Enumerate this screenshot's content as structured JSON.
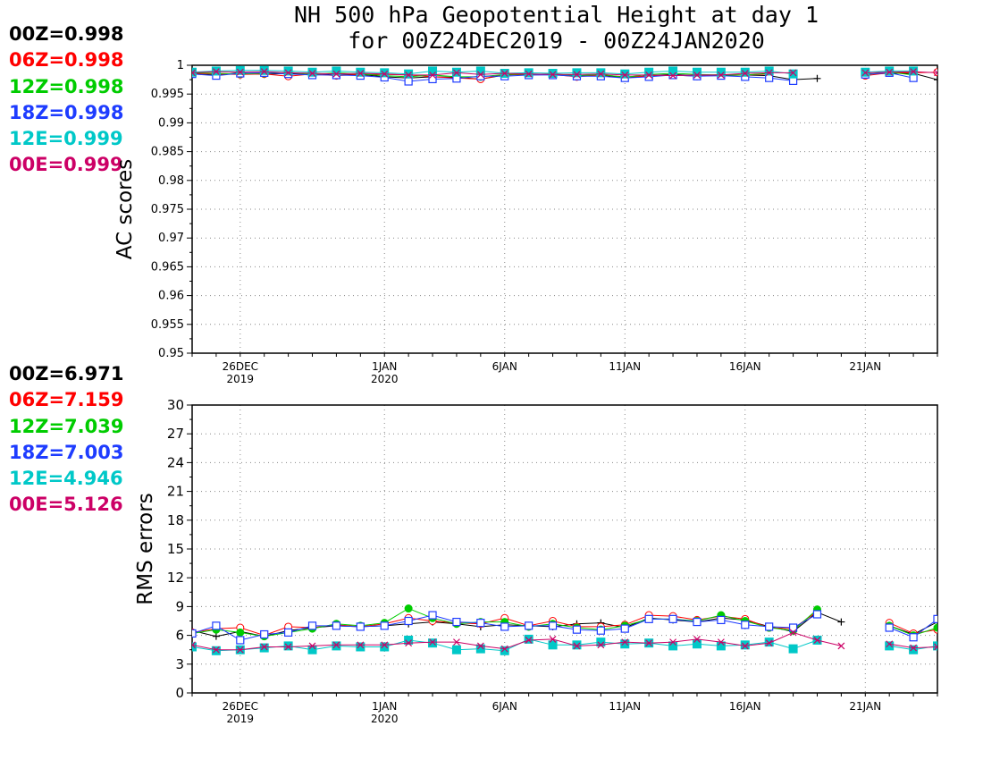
{
  "title": {
    "line1": "NH 500 hPa Geopotential Height at day 1",
    "line2": "for 00Z24DEC2019 - 00Z24JAN2020"
  },
  "colors": {
    "00Z": "#000000",
    "06Z": "#ff0000",
    "12Z": "#00cc00",
    "18Z": "#1e3cff",
    "12E": "#00c8c8",
    "00E": "#cc0066"
  },
  "legend_ac": [
    {
      "name": "00Z",
      "text": "00Z=0.998",
      "color": "#000000"
    },
    {
      "name": "06Z",
      "text": "06Z=0.998",
      "color": "#ff0000"
    },
    {
      "name": "12Z",
      "text": "12Z=0.998",
      "color": "#00cc00"
    },
    {
      "name": "18Z",
      "text": "18Z=0.998",
      "color": "#1e3cff"
    },
    {
      "name": "12E",
      "text": "12E=0.999",
      "color": "#00c8c8"
    },
    {
      "name": "00E",
      "text": "00E=0.999",
      "color": "#cc0066"
    }
  ],
  "legend_rms": [
    {
      "name": "00Z",
      "text": "00Z=6.971",
      "color": "#000000"
    },
    {
      "name": "06Z",
      "text": "06Z=7.159",
      "color": "#ff0000"
    },
    {
      "name": "12Z",
      "text": "12Z=7.039",
      "color": "#00cc00"
    },
    {
      "name": "18Z",
      "text": "18Z=7.003",
      "color": "#1e3cff"
    },
    {
      "name": "12E",
      "text": "12E=4.946",
      "color": "#00c8c8"
    },
    {
      "name": "00E",
      "text": "00E=5.126",
      "color": "#cc0066"
    }
  ],
  "chart_data": [
    {
      "type": "line",
      "ylabel": "AC scores",
      "ylim": [
        0.95,
        1.0
      ],
      "yticks": [
        0.95,
        0.955,
        0.96,
        0.965,
        0.97,
        0.975,
        0.98,
        0.985,
        0.99,
        0.995,
        1
      ],
      "ytick_labels": [
        "0.95",
        "0.955",
        "0.96",
        "0.965",
        "0.97",
        "0.975",
        "0.98",
        "0.985",
        "0.99",
        "0.995",
        "1"
      ],
      "xlim": [
        "2019-12-24",
        "2020-01-24"
      ],
      "xticks": [
        {
          "date": "2019-12-26",
          "label": "26DEC",
          "label2": "2019"
        },
        {
          "date": "2020-01-01",
          "label": "1JAN",
          "label2": "2020"
        },
        {
          "date": "2020-01-06",
          "label": "6JAN",
          "label2": ""
        },
        {
          "date": "2020-01-11",
          "label": "11JAN",
          "label2": ""
        },
        {
          "date": "2020-01-16",
          "label": "16JAN",
          "label2": ""
        },
        {
          "date": "2020-01-21",
          "label": "21JAN",
          "label2": ""
        }
      ],
      "grid": true,
      "x": [
        "2019-12-24",
        "2019-12-25",
        "2019-12-26",
        "2019-12-27",
        "2019-12-28",
        "2019-12-29",
        "2019-12-30",
        "2019-12-31",
        "2020-01-01",
        "2020-01-02",
        "2020-01-03",
        "2020-01-04",
        "2020-01-05",
        "2020-01-06",
        "2020-01-07",
        "2020-01-08",
        "2020-01-09",
        "2020-01-10",
        "2020-01-11",
        "2020-01-12",
        "2020-01-13",
        "2020-01-14",
        "2020-01-15",
        "2020-01-16",
        "2020-01-17",
        "2020-01-18",
        "2020-01-19",
        "2020-01-20",
        "2020-01-21",
        "2020-01-22",
        "2020-01-23",
        "2020-01-24"
      ],
      "series": [
        {
          "name": "00Z",
          "marker": "plus",
          "values": [
            0.9985,
            0.9983,
            0.9987,
            0.9984,
            0.9986,
            0.9985,
            0.9983,
            0.9984,
            0.998,
            0.9978,
            0.998,
            0.9979,
            0.9976,
            0.9983,
            0.9984,
            0.9985,
            0.9982,
            0.9983,
            0.9978,
            0.9982,
            0.9984,
            0.9982,
            0.9982,
            0.9983,
            0.9982,
            0.9975,
            0.9977,
            null,
            0.9985,
            0.9986,
            0.9986,
            0.9975
          ]
        },
        {
          "name": "06Z",
          "marker": "circle",
          "values": [
            0.9986,
            0.9985,
            0.9984,
            0.9985,
            0.9981,
            0.9985,
            0.9982,
            0.9984,
            0.9984,
            0.9983,
            0.998,
            0.9978,
            0.9976,
            0.9984,
            0.9983,
            0.9984,
            0.998,
            0.9983,
            0.998,
            0.9981,
            0.9983,
            0.9981,
            0.9984,
            0.9983,
            0.9985,
            null,
            null,
            null,
            0.9982,
            0.9987,
            0.9987,
            0.9988
          ]
        },
        {
          "name": "12Z",
          "marker": "dot",
          "values": [
            0.9987,
            0.9986,
            0.9985,
            0.9986,
            0.9988,
            0.9984,
            0.9987,
            0.9985,
            0.9982,
            0.998,
            0.9983,
            0.998,
            0.998,
            0.9984,
            0.9985,
            0.9984,
            0.9982,
            0.9984,
            0.9979,
            0.9984,
            0.9986,
            0.9984,
            0.9983,
            0.9983,
            0.9986,
            null,
            null,
            null,
            0.9984,
            0.9988,
            0.9983,
            null
          ]
        },
        {
          "name": "18Z",
          "marker": "square",
          "values": [
            0.9985,
            0.9982,
            0.9986,
            0.9987,
            0.9985,
            0.9983,
            0.9983,
            0.9982,
            0.9979,
            0.9972,
            0.9976,
            0.9977,
            0.9981,
            0.9981,
            0.9983,
            0.9983,
            0.9981,
            0.9981,
            0.9978,
            0.998,
            0.9983,
            0.9981,
            0.9982,
            0.998,
            0.9978,
            0.9973,
            null,
            null,
            0.9984,
            0.9987,
            0.9978,
            null
          ]
        },
        {
          "name": "12E",
          "marker": "filled-square",
          "values": [
            0.9988,
            0.999,
            0.9991,
            0.9991,
            0.999,
            0.9988,
            0.999,
            0.9988,
            0.9987,
            0.9985,
            0.999,
            0.9988,
            0.999,
            0.9986,
            0.9987,
            0.9986,
            0.9987,
            0.9987,
            0.9985,
            0.9988,
            0.999,
            0.9988,
            0.9988,
            0.9988,
            0.999,
            0.9985,
            null,
            null,
            0.9988,
            0.999,
            0.999,
            null
          ]
        },
        {
          "name": "00E",
          "marker": "cross",
          "values": [
            0.9987,
            0.9989,
            0.9988,
            0.9989,
            0.9987,
            0.9986,
            0.9985,
            0.9986,
            0.9985,
            0.9983,
            0.9983,
            0.9987,
            0.9984,
            0.9986,
            0.9985,
            0.9984,
            0.9984,
            0.9985,
            0.9983,
            0.9983,
            0.9982,
            0.9983,
            0.9983,
            0.9986,
            0.9987,
            0.9987,
            null,
            null,
            0.9987,
            0.9988,
            0.9989,
            0.9987
          ]
        }
      ]
    },
    {
      "type": "line",
      "ylabel": "RMS errors",
      "ylim": [
        0,
        30
      ],
      "yticks": [
        0,
        3,
        6,
        9,
        12,
        15,
        18,
        21,
        24,
        27,
        30
      ],
      "ytick_labels": [
        "0",
        "3",
        "6",
        "9",
        "12",
        "15",
        "18",
        "21",
        "24",
        "27",
        "30"
      ],
      "xlim": [
        "2019-12-24",
        "2020-01-24"
      ],
      "xticks": [
        {
          "date": "2019-12-26",
          "label": "26DEC",
          "label2": "2019"
        },
        {
          "date": "2020-01-01",
          "label": "1JAN",
          "label2": "2020"
        },
        {
          "date": "2020-01-06",
          "label": "6JAN",
          "label2": ""
        },
        {
          "date": "2020-01-11",
          "label": "11JAN",
          "label2": ""
        },
        {
          "date": "2020-01-16",
          "label": "16JAN",
          "label2": ""
        },
        {
          "date": "2020-01-21",
          "label": "21JAN",
          "label2": ""
        }
      ],
      "grid": true,
      "x": [
        "2019-12-24",
        "2019-12-25",
        "2019-12-26",
        "2019-12-27",
        "2019-12-28",
        "2019-12-29",
        "2019-12-30",
        "2019-12-31",
        "2020-01-01",
        "2020-01-02",
        "2020-01-03",
        "2020-01-04",
        "2020-01-05",
        "2020-01-06",
        "2020-01-07",
        "2020-01-08",
        "2020-01-09",
        "2020-01-10",
        "2020-01-11",
        "2020-01-12",
        "2020-01-13",
        "2020-01-14",
        "2020-01-15",
        "2020-01-16",
        "2020-01-17",
        "2020-01-18",
        "2020-01-19",
        "2020-01-20",
        "2020-01-21",
        "2020-01-22",
        "2020-01-23",
        "2020-01-24"
      ],
      "series": [
        {
          "name": "00Z",
          "marker": "plus",
          "values": [
            6.5,
            5.9,
            6.4,
            5.9,
            6.5,
            6.8,
            7.0,
            6.9,
            7.0,
            7.2,
            7.4,
            7.2,
            6.9,
            7.1,
            7.0,
            6.9,
            7.2,
            7.3,
            6.8,
            7.8,
            7.6,
            7.4,
            7.8,
            7.6,
            6.9,
            6.4,
            8.4,
            7.4,
            null,
            7.0,
            6.1,
            7.4
          ]
        },
        {
          "name": "06Z",
          "marker": "circle",
          "values": [
            6.3,
            6.7,
            6.8,
            6.0,
            6.9,
            6.8,
            7.1,
            6.9,
            7.2,
            7.8,
            7.5,
            7.3,
            7.2,
            7.8,
            7.0,
            7.5,
            6.9,
            6.9,
            7.1,
            8.1,
            8.0,
            7.6,
            8.0,
            7.7,
            6.8,
            6.7,
            8.5,
            null,
            null,
            7.3,
            6.2,
            6.6
          ]
        },
        {
          "name": "12Z",
          "marker": "dot",
          "values": [
            6.2,
            6.6,
            6.3,
            5.9,
            6.3,
            6.7,
            7.2,
            7.0,
            7.3,
            8.8,
            7.8,
            7.2,
            7.4,
            7.4,
            6.9,
            7.2,
            6.8,
            6.6,
            7.0,
            7.7,
            7.7,
            7.5,
            8.1,
            7.5,
            6.8,
            6.5,
            8.7,
            null,
            null,
            7.0,
            6.0,
            6.8
          ]
        },
        {
          "name": "18Z",
          "marker": "square",
          "values": [
            6.2,
            7.0,
            5.5,
            6.1,
            6.3,
            7.0,
            7.0,
            6.9,
            7.0,
            7.5,
            8.1,
            7.4,
            7.3,
            6.9,
            7.0,
            7.0,
            6.6,
            6.5,
            6.7,
            7.7,
            7.7,
            7.4,
            7.6,
            7.1,
            6.9,
            6.8,
            8.2,
            null,
            null,
            6.8,
            5.8,
            7.7
          ]
        },
        {
          "name": "12E",
          "marker": "filled-square",
          "values": [
            4.8,
            4.4,
            4.5,
            4.7,
            4.9,
            4.5,
            4.9,
            4.8,
            4.8,
            5.5,
            5.2,
            4.5,
            4.6,
            4.4,
            5.6,
            5.0,
            5.0,
            5.3,
            5.1,
            5.2,
            4.9,
            5.1,
            4.9,
            5.0,
            5.3,
            4.6,
            5.5,
            null,
            null,
            4.9,
            4.5,
            4.9
          ]
        },
        {
          "name": "00E",
          "marker": "cross",
          "values": [
            5.0,
            4.5,
            4.5,
            4.8,
            4.8,
            4.9,
            5.0,
            5.0,
            5.0,
            5.2,
            5.3,
            5.3,
            4.9,
            4.6,
            5.5,
            5.6,
            4.9,
            5.0,
            5.3,
            5.2,
            5.3,
            5.6,
            5.3,
            4.9,
            5.2,
            6.3,
            5.5,
            4.9,
            null,
            5.1,
            4.7,
            4.8
          ]
        }
      ]
    }
  ]
}
